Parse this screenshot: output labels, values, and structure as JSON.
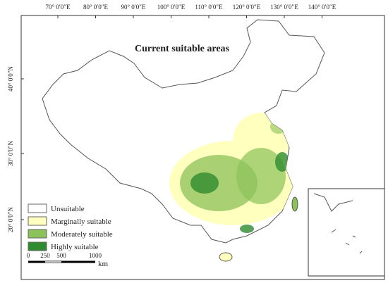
{
  "map": {
    "title": "Current suitable areas",
    "longitude_labels": [
      "70° 0′0″E",
      "80° 0′0″E",
      "90° 0′0″E",
      "100° 0′0″E",
      "110° 0′0″E",
      "120° 0′0″E",
      "130° 0′0″E",
      "140° 0′0″E"
    ],
    "latitude_labels": [
      "40° 0′0″N",
      "30° 0′0″N",
      "20° 0′0″N"
    ],
    "legend": [
      {
        "label": "Unsuitable",
        "color": "#ffffff"
      },
      {
        "label": "Marginally suitable",
        "color": "#ffffbe"
      },
      {
        "label": "Moderately suitable",
        "color": "#8cc25a"
      },
      {
        "label": "Highly suitable",
        "color": "#2e8b2e"
      }
    ],
    "scale_bar": {
      "labels": [
        "0",
        "250",
        "500",
        "1000"
      ],
      "unit": "km"
    }
  }
}
